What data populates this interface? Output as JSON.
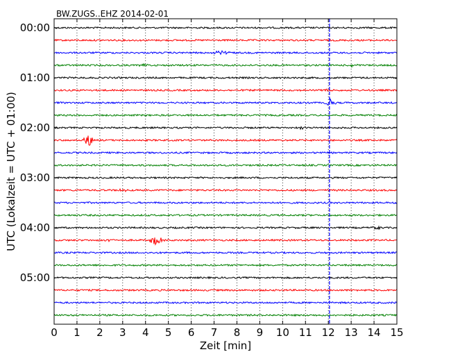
{
  "chart_data": {
    "type": "line",
    "title": "BW.ZUGS..EHZ 2014-02-01",
    "xlabel": "Zeit  [min]",
    "ylabel": "UTC (Lokalzeit = UTC + 01:00)",
    "xlim": [
      0,
      15
    ],
    "xticks": [
      "0",
      "1",
      "2",
      "3",
      "4",
      "5",
      "6",
      "7",
      "8",
      "9",
      "10",
      "11",
      "12",
      "13",
      "14",
      "15"
    ],
    "yticks": [
      "00:00",
      "01:00",
      "02:00",
      "03:00",
      "04:00",
      "05:00"
    ],
    "grid": "x-dotted",
    "trace_colors": [
      "#000000",
      "#ff0000",
      "#0000ff",
      "#008000"
    ],
    "trace_count": 24,
    "trace_interval_min": 15,
    "marker_x": 12.05,
    "marker_color": "#0000ff",
    "events": [
      {
        "trace": 2,
        "x": 7.3,
        "amp": 2.2,
        "dur": 0.5
      },
      {
        "trace": 3,
        "x": 13.1,
        "amp": 3.0,
        "dur": 0.3
      },
      {
        "trace": 3,
        "x": 4.0,
        "amp": 1.5,
        "dur": 0.4
      },
      {
        "trace": 5,
        "x": 11.9,
        "amp": 4.0,
        "dur": 0.15
      },
      {
        "trace": 6,
        "x": 12.1,
        "amp": 5.0,
        "dur": 0.3
      },
      {
        "trace": 8,
        "x": 10.9,
        "amp": 2.0,
        "dur": 0.3
      },
      {
        "trace": 9,
        "x": 1.5,
        "amp": 12.0,
        "dur": 0.25
      },
      {
        "trace": 13,
        "x": 3.0,
        "amp": 1.5,
        "dur": 0.3
      },
      {
        "trace": 16,
        "x": 14.1,
        "amp": 1.8,
        "dur": 0.3
      },
      {
        "trace": 17,
        "x": 4.5,
        "amp": 7.0,
        "dur": 0.4
      },
      {
        "trace": 17,
        "x": 2.4,
        "amp": 2.0,
        "dur": 0.3
      }
    ]
  }
}
